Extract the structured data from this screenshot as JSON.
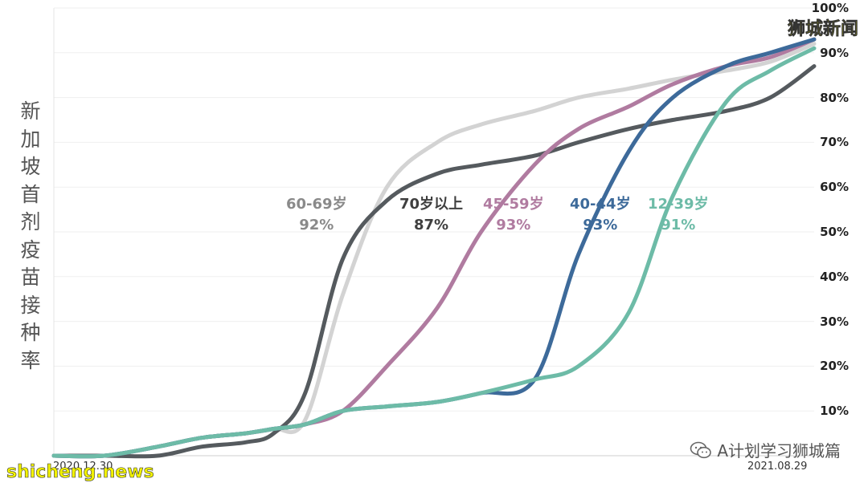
{
  "chart_data": {
    "type": "line",
    "ylabel": "新加坡首剂疫苗接种率",
    "yticks": [
      "100%",
      "90%",
      "80%",
      "70%",
      "60%",
      "50%",
      "40%",
      "30%",
      "20%",
      "10%"
    ],
    "ylim": [
      0,
      100
    ],
    "x_start_label": "2020.12.30",
    "x_end_label": "2021.08.29",
    "grid": true,
    "x": [
      "2020-12-30",
      "2021-01-15",
      "2021-02-01",
      "2021-02-15",
      "2021-03-01",
      "2021-03-10",
      "2021-03-20",
      "2021-04-01",
      "2021-04-15",
      "2021-05-01",
      "2021-05-15",
      "2021-06-01",
      "2021-06-15",
      "2021-07-01",
      "2021-07-15",
      "2021-08-01",
      "2021-08-15",
      "2021-08-29"
    ],
    "series": [
      {
        "name": "60-69岁",
        "final_label": "92%",
        "color": "#d3d3d3",
        "values": [
          0,
          0,
          2,
          4,
          5,
          6,
          8,
          36,
          60,
          70,
          74,
          77,
          80,
          82,
          84,
          86,
          88,
          92
        ]
      },
      {
        "name": "70岁以上",
        "final_label": "87%",
        "color": "#555a5e",
        "values": [
          0,
          0,
          0,
          2,
          3,
          5,
          14,
          44,
          57,
          63,
          65,
          67,
          70,
          73,
          75,
          77,
          80,
          87
        ]
      },
      {
        "name": "45-59岁",
        "final_label": "93%",
        "color": "#b07ba0",
        "values": [
          0,
          0,
          2,
          4,
          5,
          6,
          7,
          10,
          20,
          33,
          50,
          65,
          73,
          78,
          83,
          87,
          89,
          93
        ]
      },
      {
        "name": "40-44岁",
        "final_label": "93%",
        "color": "#3d6a9a",
        "values": [
          0,
          0,
          2,
          4,
          5,
          6,
          7,
          10,
          11,
          12,
          14,
          17,
          45,
          68,
          80,
          87,
          90,
          93
        ]
      },
      {
        "name": "12-39岁",
        "final_label": "91%",
        "color": "#6dbba7",
        "values": [
          0,
          0,
          2,
          4,
          5,
          6,
          7,
          10,
          11,
          12,
          14,
          17,
          20,
          32,
          58,
          79,
          86,
          91
        ]
      }
    ]
  },
  "watermarks": {
    "top_right": "狮城新闻",
    "bottom_left": "shicheng.news",
    "wechat": "A计划学习狮城篇"
  }
}
